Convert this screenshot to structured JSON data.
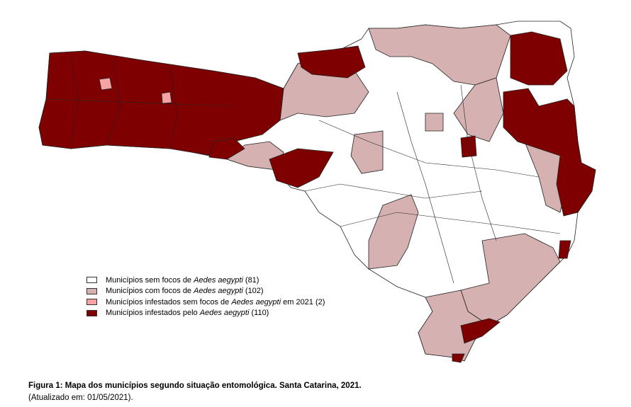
{
  "legend": [
    {
      "text": "Municípios sem focos de",
      "species": "Aedes aegypti",
      "suffix": "(81)",
      "color": "#ffffff"
    },
    {
      "text": "Municípios com focos de",
      "species": "Aedes aegypti",
      "suffix": "(102)",
      "color": "#d5b1b1"
    },
    {
      "text": "Municípios infestados sem focos de",
      "species": "Aedes aegypti",
      "suffix": "em 2021 (2)",
      "color": "#f5a3a3"
    },
    {
      "text": "Municípios infestados pelo",
      "species": "Aedes aegypti",
      "suffix": "(110)",
      "color": "#7f0000"
    }
  ],
  "caption": {
    "title": "Figura 1: Mapa dos municípios segundo situação entomológica. Santa Catarina, 2021.",
    "note": "(Atualizado em: 01/05/2021)."
  }
}
